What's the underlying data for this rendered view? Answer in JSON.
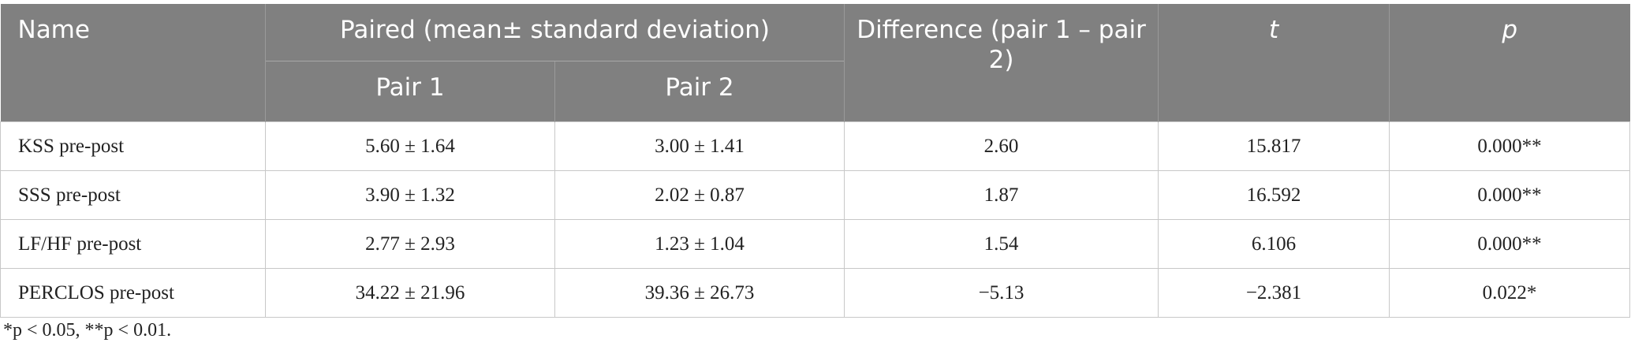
{
  "table": {
    "header": {
      "name": "Name",
      "paired": "Paired (mean± standard deviation)",
      "pair1": "Pair 1",
      "pair2": "Pair 2",
      "difference": "Difference (pair 1 – pair 2)",
      "t": "t",
      "p": "p"
    },
    "rows": [
      [
        "KSS pre-post",
        "5.60 ± 1.64",
        "3.00 ± 1.41",
        "2.60",
        "15.817",
        "0.000**"
      ],
      [
        "SSS pre-post",
        "3.90 ± 1.32",
        "2.02 ± 0.87",
        "1.87",
        "16.592",
        "0.000**"
      ],
      [
        "LF/HF pre-post",
        "2.77 ± 2.93",
        "1.23 ± 1.04",
        "1.54",
        "6.106",
        "0.000**"
      ],
      [
        "PERCLOS pre-post",
        "34.22 ± 21.96",
        "39.36 ± 26.73",
        "−5.13",
        "−2.381",
        "0.022*"
      ]
    ]
  },
  "footnote": "*p < 0.05, **p < 0.01."
}
